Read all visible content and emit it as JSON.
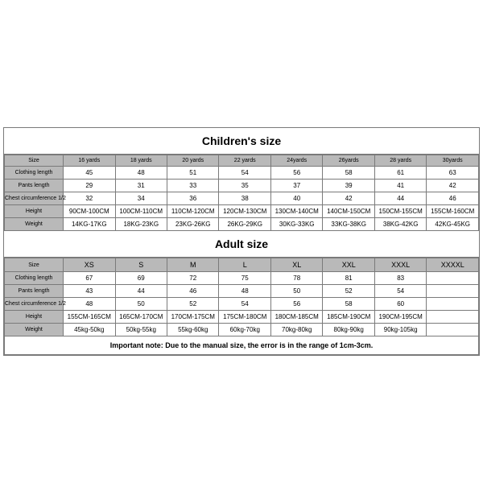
{
  "children": {
    "title": "Children's size",
    "title_fontsize": 14,
    "header_bg": "#b9b9b9",
    "border_color": "#7a7a7a",
    "columns": [
      "Size",
      "16 yards",
      "18 yards",
      "20 yards",
      "22 yards",
      "24yards",
      "26yards",
      "28 yards",
      "30yards"
    ],
    "rows": [
      {
        "label": "Clothing length",
        "cells": [
          "45",
          "48",
          "51",
          "54",
          "56",
          "58",
          "61",
          "63"
        ]
      },
      {
        "label": "Pants length",
        "cells": [
          "29",
          "31",
          "33",
          "35",
          "37",
          "39",
          "41",
          "42"
        ]
      },
      {
        "label": "Chest circumference 1/2",
        "cells": [
          "32",
          "34",
          "36",
          "38",
          "40",
          "42",
          "44",
          "46"
        ]
      },
      {
        "label": "Height",
        "cells": [
          "90CM-100CM",
          "100CM-110CM",
          "110CM-120CM",
          "120CM-130CM",
          "130CM-140CM",
          "140CM-150CM",
          "150CM-155CM",
          "155CM-160CM"
        ]
      },
      {
        "label": "Weight",
        "cells": [
          "14KG-17KG",
          "18KG-23KG",
          "23KG-26KG",
          "26KG-29KG",
          "30KG-33KG",
          "33KG-38KG",
          "38KG-42KG",
          "42KG-45KG"
        ]
      }
    ]
  },
  "adult": {
    "title": "Adult size",
    "title_fontsize": 14,
    "columns": [
      "Size",
      "XS",
      "S",
      "M",
      "L",
      "XL",
      "XXL",
      "XXXL",
      "XXXXL"
    ],
    "rows": [
      {
        "label": "Clothing length",
        "cells": [
          "67",
          "69",
          "72",
          "75",
          "78",
          "81",
          "83",
          ""
        ]
      },
      {
        "label": "Pants length",
        "cells": [
          "43",
          "44",
          "46",
          "48",
          "50",
          "52",
          "54",
          ""
        ]
      },
      {
        "label": "Chest circumference 1/2",
        "cells": [
          "48",
          "50",
          "52",
          "54",
          "56",
          "58",
          "60",
          ""
        ]
      },
      {
        "label": "Height",
        "cells": [
          "155CM-165CM",
          "165CM-170CM",
          "170CM-175CM",
          "175CM-180CM",
          "180CM-185CM",
          "185CM-190CM",
          "190CM-195CM",
          ""
        ]
      },
      {
        "label": "Weight",
        "cells": [
          "45kg-50kg",
          "50kg-55kg",
          "55kg-60kg",
          "60kg-70kg",
          "70kg-80kg",
          "80kg-90kg",
          "90kg-105kg",
          ""
        ]
      }
    ],
    "note": "Important note: Due to the manual size, the error is in the range of 1cm-3cm."
  }
}
